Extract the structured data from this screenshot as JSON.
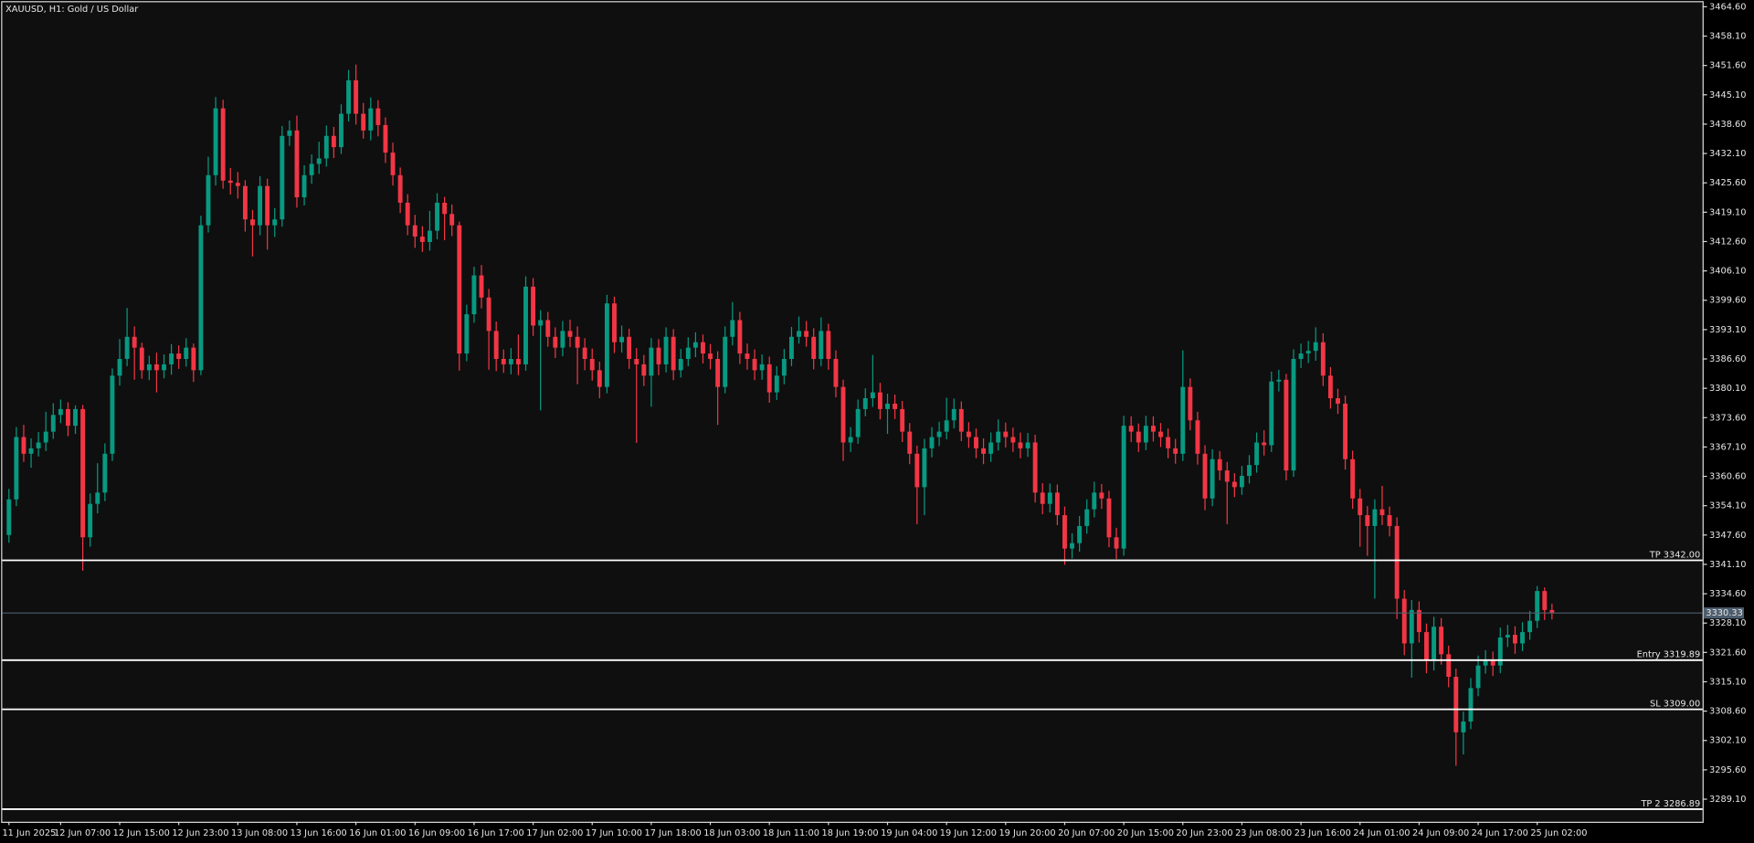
{
  "chart_data": {
    "type": "candlestick",
    "title": "XAUUSD, H1:  Gold / US Dollar",
    "up_color": "#089981",
    "down_color": "#f23645",
    "ylim": [
      3284.1,
      3465.6
    ],
    "yticks": [
      {
        "value": 3464.6,
        "label": "3464.60"
      },
      {
        "value": 3458.1,
        "label": "3458.10"
      },
      {
        "value": 3451.6,
        "label": "3451.60"
      },
      {
        "value": 3445.1,
        "label": "3445.10"
      },
      {
        "value": 3438.6,
        "label": "3438.60"
      },
      {
        "value": 3432.1,
        "label": "3432.10"
      },
      {
        "value": 3425.6,
        "label": "3425.60"
      },
      {
        "value": 3419.1,
        "label": "3419.10"
      },
      {
        "value": 3412.6,
        "label": "3412.60"
      },
      {
        "value": 3406.1,
        "label": "3406.10"
      },
      {
        "value": 3399.6,
        "label": "3399.60"
      },
      {
        "value": 3393.1,
        "label": "3393.10"
      },
      {
        "value": 3386.6,
        "label": "3386.60"
      },
      {
        "value": 3380.1,
        "label": "3380.10"
      },
      {
        "value": 3373.6,
        "label": "3373.60"
      },
      {
        "value": 3367.1,
        "label": "3367.10"
      },
      {
        "value": 3360.6,
        "label": "3360.60"
      },
      {
        "value": 3354.1,
        "label": "3354.10"
      },
      {
        "value": 3347.6,
        "label": "3347.60"
      },
      {
        "value": 3341.1,
        "label": "3341.10"
      },
      {
        "value": 3334.6,
        "label": "3334.60"
      },
      {
        "value": 3328.1,
        "label": "3328.10"
      },
      {
        "value": 3321.6,
        "label": "3321.60"
      },
      {
        "value": 3315.1,
        "label": "3315.10"
      },
      {
        "value": 3308.6,
        "label": "3308.60"
      },
      {
        "value": 3302.1,
        "label": "3302.10"
      },
      {
        "value": 3295.6,
        "label": "3295.60"
      },
      {
        "value": 3289.1,
        "label": "3289.10"
      }
    ],
    "categories": [
      "11 Jun 2025",
      null,
      null,
      null,
      null,
      null,
      null,
      "12 Jun 07:00",
      null,
      null,
      null,
      null,
      null,
      null,
      null,
      "12 Jun 15:00",
      null,
      null,
      null,
      null,
      null,
      null,
      null,
      "12 Jun 23:00",
      null,
      null,
      null,
      null,
      null,
      null,
      null,
      "13 Jun 08:00",
      null,
      null,
      null,
      null,
      null,
      null,
      null,
      "13 Jun 16:00",
      null,
      null,
      null,
      null,
      null,
      null,
      null,
      "16 Jun 01:00",
      null,
      null,
      null,
      null,
      null,
      null,
      null,
      "16 Jun 09:00",
      null,
      null,
      null,
      null,
      null,
      null,
      null,
      "16 Jun 17:00",
      null,
      null,
      null,
      null,
      null,
      null,
      null,
      "17 Jun 02:00",
      null,
      null,
      null,
      null,
      null,
      null,
      null,
      "17 Jun 10:00",
      null,
      null,
      null,
      null,
      null,
      null,
      null,
      "17 Jun 18:00",
      null,
      null,
      null,
      null,
      null,
      null,
      null,
      "18 Jun 03:00",
      null,
      null,
      null,
      null,
      null,
      null,
      null,
      "18 Jun 11:00",
      null,
      null,
      null,
      null,
      null,
      null,
      null,
      "18 Jun 19:00",
      null,
      null,
      null,
      null,
      null,
      null,
      null,
      "19 Jun 04:00",
      null,
      null,
      null,
      null,
      null,
      null,
      null,
      "19 Jun 12:00",
      null,
      null,
      null,
      null,
      null,
      null,
      null,
      "19 Jun 20:00",
      null,
      null,
      null,
      null,
      null,
      null,
      null,
      "20 Jun 07:00",
      null,
      null,
      null,
      null,
      null,
      null,
      null,
      "20 Jun 15:00",
      null,
      null,
      null,
      null,
      null,
      null,
      null,
      "20 Jun 23:00",
      null,
      null,
      null,
      null,
      null,
      null,
      null,
      "23 Jun 08:00",
      null,
      null,
      null,
      null,
      null,
      null,
      null,
      "23 Jun 16:00",
      null,
      null,
      null,
      null,
      null,
      null,
      null,
      "24 Jun 01:00",
      null,
      null,
      null,
      null,
      null,
      null,
      null,
      "24 Jun 09:00",
      null,
      null,
      null,
      null,
      null,
      null,
      null,
      "24 Jun 17:00",
      null,
      null,
      null,
      null,
      null,
      null,
      null,
      "25 Jun 02:00",
      null,
      null
    ],
    "open": [
      3347.6,
      3355.5,
      3369.3,
      3365.6,
      3366.8,
      3368.1,
      3370.5,
      3374.2,
      3375.5,
      3371.8,
      3375.5,
      3347.1,
      3354.5,
      3357.0,
      3365.6,
      3382.9,
      3386.6,
      3391.5,
      3389.1,
      3384.1,
      3385.4,
      3384.1,
      3385.4,
      3387.8,
      3386.6,
      3389.1,
      3384.1,
      3416.2,
      3427.3,
      3442.1,
      3426.1,
      3425.6,
      3424.9,
      3417.5,
      3416.2,
      3424.9,
      3416.2,
      3417.5,
      3436.0,
      3437.2,
      3422.4,
      3427.3,
      3429.8,
      3431.0,
      3436.0,
      3433.5,
      3440.9,
      3448.3,
      3440.9,
      3437.2,
      3442.1,
      3438.4,
      3432.3,
      3427.3,
      3421.2,
      3416.2,
      3413.7,
      3412.5,
      3415.0,
      3421.2,
      3418.7,
      3416.2,
      3387.8,
      3396.5,
      3405.1,
      3400.2,
      3392.8,
      3386.6,
      3385.4,
      3386.6,
      3385.4,
      3402.6,
      3394.0,
      3395.2,
      3391.5,
      3389.1,
      3392.8,
      3391.5,
      3389.1,
      3386.6,
      3384.1,
      3380.4,
      3398.9,
      3390.3,
      3391.5,
      3386.6,
      3385.4,
      3382.9,
      3389.1,
      3385.4,
      3391.5,
      3384.1,
      3386.6,
      3389.1,
      3390.3,
      3387.8,
      3386.6,
      3380.4,
      3391.5,
      3395.2,
      3387.8,
      3386.6,
      3384.1,
      3385.4,
      3379.2,
      3382.9,
      3386.6,
      3391.5,
      3392.8,
      3391.5,
      3386.6,
      3392.8,
      3386.6,
      3380.4,
      3368.1,
      3369.3,
      3375.5,
      3377.9,
      3379.2,
      3375.5,
      3376.7,
      3375.5,
      3370.5,
      3365.6,
      3358.2,
      3366.8,
      3369.3,
      3370.5,
      3373.0,
      3375.5,
      3370.5,
      3369.3,
      3366.8,
      3365.6,
      3368.1,
      3370.5,
      3369.3,
      3368.1,
      3366.8,
      3368.1,
      3357.0,
      3354.5,
      3357.0,
      3352.0,
      3344.6,
      3345.8,
      3349.6,
      3353.3,
      3357.0,
      3355.7,
      3347.1,
      3344.6,
      3371.8,
      3370.5,
      3368.1,
      3371.8,
      3370.5,
      3369.3,
      3366.8,
      3365.6,
      3380.4,
      3373.0,
      3365.6,
      3355.7,
      3364.4,
      3361.9,
      3359.4,
      3358.2,
      3360.7,
      3363.1,
      3368.1,
      3367.5,
      3381.6,
      3382.0,
      3361.9,
      3386.6,
      3387.8,
      3388.4,
      3390.3,
      3382.9,
      3377.9,
      3376.7,
      3364.4,
      3355.7,
      3352.0,
      3349.6,
      3353.3,
      3352.0,
      3349.6,
      3333.5,
      3323.6,
      3331.0,
      3326.1,
      3319.9,
      3327.3,
      3321.2,
      3316.2,
      3303.9,
      3306.3,
      3313.7,
      3318.7,
      3319.9,
      3318.7,
      3324.9,
      3325.5,
      3323.6,
      3326.1,
      3328.6,
      3335.2,
      3331.0
    ],
    "high": [
      3357.8,
      3371.5,
      3372.0,
      3369.0,
      3370.4,
      3374.9,
      3376.8,
      3377.6,
      3377.0,
      3376.3,
      3376.4,
      3356.8,
      3363.5,
      3367.9,
      3384.5,
      3391.0,
      3397.9,
      3393.8,
      3390.2,
      3387.3,
      3388.0,
      3387.6,
      3389.9,
      3389.6,
      3391.2,
      3390.0,
      3418.3,
      3431.4,
      3444.6,
      3444.0,
      3428.9,
      3428.0,
      3426.2,
      3419.6,
      3427.1,
      3426.5,
      3420.0,
      3438.2,
      3439.4,
      3440.5,
      3429.5,
      3431.9,
      3434.7,
      3438.3,
      3438.0,
      3443.0,
      3450.6,
      3451.8,
      3443.3,
      3444.5,
      3443.9,
      3440.1,
      3434.5,
      3429.0,
      3423.1,
      3418.5,
      3416.0,
      3419.4,
      3423.3,
      3422.5,
      3420.8,
      3417.0,
      3398.6,
      3407.0,
      3407.4,
      3402.1,
      3394.9,
      3388.7,
      3389.0,
      3392.0,
      3404.9,
      3404.5,
      3397.4,
      3397.0,
      3393.6,
      3395.0,
      3395.3,
      3393.8,
      3391.2,
      3388.9,
      3386.0,
      3400.8,
      3400.4,
      3394.0,
      3393.3,
      3389.0,
      3387.5,
      3391.2,
      3391.0,
      3393.6,
      3393.2,
      3388.8,
      3391.4,
      3392.5,
      3392.0,
      3389.9,
      3388.3,
      3393.8,
      3399.2,
      3397.0,
      3390.0,
      3388.7,
      3387.6,
      3387.1,
      3385.0,
      3388.8,
      3393.7,
      3396.0,
      3395.0,
      3393.4,
      3395.8,
      3394.4,
      3388.5,
      3382.0,
      3371.5,
      3377.6,
      3380.1,
      3387.5,
      3381.3,
      3378.9,
      3378.7,
      3377.3,
      3372.4,
      3367.4,
      3368.9,
      3371.5,
      3372.7,
      3378.0,
      3377.8,
      3377.2,
      3372.6,
      3371.2,
      3369.0,
      3370.3,
      3373.2,
      3372.5,
      3371.4,
      3370.3,
      3370.2,
      3369.8,
      3359.1,
      3359.0,
      3358.8,
      3353.9,
      3348.0,
      3351.8,
      3355.5,
      3359.4,
      3358.9,
      3357.4,
      3349.2,
      3374.0,
      3373.9,
      3372.3,
      3374.0,
      3373.9,
      3372.4,
      3371.2,
      3368.9,
      3388.5,
      3382.3,
      3374.9,
      3367.5,
      3366.6,
      3366.2,
      3363.8,
      3361.3,
      3362.9,
      3365.3,
      3370.3,
      3370.8,
      3383.8,
      3384.2,
      3383.3,
      3388.7,
      3390.0,
      3390.6,
      3393.6,
      3392.3,
      3384.8,
      3380.0,
      3378.5,
      3366.3,
      3357.8,
      3354.0,
      3355.5,
      3358.5,
      3353.9,
      3351.5,
      3335.4,
      3333.2,
      3332.9,
      3328.0,
      3329.5,
      3329.2,
      3323.1,
      3318.0,
      3308.5,
      3315.9,
      3320.9,
      3322.1,
      3321.8,
      3327.1,
      3327.7,
      3327.4,
      3328.3,
      3330.8,
      3336.3,
      3336.0,
      3332.4
    ],
    "low": [
      3345.9,
      3354.0,
      3363.8,
      3362.5,
      3365.0,
      3366.2,
      3368.9,
      3372.4,
      3369.5,
      3370.0,
      3339.7,
      3345.0,
      3352.4,
      3355.1,
      3364.0,
      3380.7,
      3385.0,
      3382.0,
      3382.2,
      3381.9,
      3379.2,
      3382.3,
      3383.1,
      3384.4,
      3384.9,
      3381.5,
      3383.0,
      3414.6,
      3425.0,
      3424.3,
      3423.0,
      3422.1,
      3414.8,
      3409.3,
      3414.0,
      3410.8,
      3413.6,
      3415.9,
      3433.8,
      3420.1,
      3420.6,
      3425.4,
      3427.6,
      3429.2,
      3431.1,
      3432.0,
      3439.2,
      3438.5,
      3435.4,
      3435.0,
      3435.9,
      3430.0,
      3425.0,
      3418.9,
      3414.0,
      3411.2,
      3410.3,
      3410.6,
      3413.1,
      3412.9,
      3413.8,
      3384.0,
      3386.1,
      3394.6,
      3397.8,
      3384.2,
      3383.9,
      3383.5,
      3383.2,
      3383.0,
      3384.0,
      3391.7,
      3375.2,
      3389.3,
      3386.8,
      3387.2,
      3389.2,
      3381.0,
      3384.1,
      3381.8,
      3377.9,
      3379.0,
      3387.9,
      3388.0,
      3384.4,
      3368.0,
      3380.6,
      3376.0,
      3383.0,
      3383.6,
      3381.9,
      3382.5,
      3385.0,
      3387.0,
      3385.6,
      3384.3,
      3372.0,
      3379.0,
      3389.6,
      3385.5,
      3384.2,
      3381.9,
      3382.0,
      3376.9,
      3377.5,
      3381.0,
      3385.0,
      3390.0,
      3389.3,
      3384.3,
      3385.0,
      3384.2,
      3378.1,
      3364.0,
      3366.0,
      3367.8,
      3373.9,
      3376.0,
      3373.2,
      3370.0,
      3373.3,
      3368.2,
      3363.3,
      3350.0,
      3352.0,
      3364.8,
      3367.3,
      3368.8,
      3371.2,
      3368.4,
      3366.9,
      3364.6,
      3363.3,
      3363.8,
      3366.3,
      3367.0,
      3366.0,
      3364.6,
      3364.9,
      3354.8,
      3352.2,
      3352.6,
      3349.8,
      3341.0,
      3342.4,
      3343.9,
      3347.9,
      3351.5,
      3353.4,
      3344.9,
      3342.3,
      3343.0,
      3368.2,
      3366.0,
      3366.4,
      3368.3,
      3367.1,
      3364.6,
      3363.4,
      3364.0,
      3370.8,
      3363.2,
      3353.1,
      3354.0,
      3359.7,
      3350.0,
      3356.0,
      3356.5,
      3359.0,
      3361.4,
      3365.2,
      3366.0,
      3379.4,
      3359.7,
      3360.5,
      3384.6,
      3385.7,
      3386.2,
      3380.6,
      3375.6,
      3374.4,
      3362.1,
      3353.4,
      3345.0,
      3343.0,
      3333.5,
      3349.8,
      3347.3,
      3329.0,
      3321.0,
      3316.0,
      3323.8,
      3317.0,
      3317.6,
      3318.9,
      3313.9,
      3296.5,
      3299.0,
      3304.6,
      3311.9,
      3316.9,
      3316.4,
      3317.0,
      3322.8,
      3321.3,
      3321.9,
      3324.4,
      3327.0,
      3328.8,
      3328.9
    ],
    "close": [
      3355.5,
      3369.3,
      3365.6,
      3366.8,
      3368.1,
      3370.5,
      3374.2,
      3375.5,
      3371.8,
      3375.5,
      3347.1,
      3354.5,
      3357.0,
      3365.6,
      3382.9,
      3386.6,
      3391.5,
      3389.1,
      3384.1,
      3385.4,
      3384.1,
      3385.4,
      3387.8,
      3386.6,
      3389.1,
      3384.1,
      3416.2,
      3427.3,
      3442.1,
      3426.1,
      3425.6,
      3424.9,
      3417.5,
      3416.2,
      3424.9,
      3416.2,
      3417.5,
      3436.0,
      3437.2,
      3422.4,
      3427.3,
      3429.8,
      3431.0,
      3436.0,
      3433.5,
      3440.9,
      3448.3,
      3440.9,
      3437.2,
      3442.1,
      3438.4,
      3432.3,
      3427.3,
      3421.2,
      3416.2,
      3413.7,
      3412.5,
      3415.0,
      3421.2,
      3418.7,
      3416.2,
      3387.8,
      3396.5,
      3405.1,
      3400.2,
      3392.8,
      3386.6,
      3385.4,
      3386.6,
      3385.4,
      3402.6,
      3394.0,
      3395.2,
      3391.5,
      3389.1,
      3392.8,
      3391.5,
      3389.1,
      3386.6,
      3384.1,
      3380.4,
      3398.9,
      3390.3,
      3391.5,
      3386.6,
      3385.4,
      3382.9,
      3389.1,
      3385.4,
      3391.5,
      3384.1,
      3386.6,
      3389.1,
      3390.3,
      3387.8,
      3386.6,
      3380.4,
      3391.5,
      3395.2,
      3387.8,
      3386.6,
      3384.1,
      3385.4,
      3379.2,
      3382.9,
      3386.6,
      3391.5,
      3392.8,
      3391.5,
      3386.6,
      3392.8,
      3386.6,
      3380.4,
      3368.1,
      3369.3,
      3375.5,
      3377.9,
      3379.2,
      3375.5,
      3376.7,
      3375.5,
      3370.5,
      3365.6,
      3358.2,
      3366.8,
      3369.3,
      3370.5,
      3373.0,
      3375.5,
      3370.5,
      3369.3,
      3366.8,
      3365.6,
      3368.1,
      3370.5,
      3369.3,
      3368.1,
      3366.8,
      3368.1,
      3357.0,
      3354.5,
      3357.0,
      3352.0,
      3344.6,
      3345.8,
      3349.6,
      3353.3,
      3357.0,
      3355.7,
      3347.1,
      3344.6,
      3371.8,
      3370.5,
      3368.1,
      3371.8,
      3370.5,
      3369.3,
      3366.8,
      3365.6,
      3380.4,
      3373.0,
      3365.6,
      3355.7,
      3364.4,
      3361.9,
      3359.4,
      3358.2,
      3360.7,
      3363.1,
      3368.1,
      3367.5,
      3381.6,
      3382.0,
      3361.9,
      3386.6,
      3387.8,
      3388.4,
      3390.3,
      3382.9,
      3377.9,
      3376.7,
      3364.4,
      3355.7,
      3352.0,
      3349.6,
      3353.3,
      3352.0,
      3349.6,
      3333.5,
      3323.6,
      3331.0,
      3326.1,
      3319.9,
      3327.3,
      3321.2,
      3316.2,
      3303.9,
      3306.3,
      3313.7,
      3318.7,
      3319.9,
      3318.7,
      3324.9,
      3325.5,
      3323.6,
      3326.1,
      3328.6,
      3335.2,
      3331.0,
      3330.3
    ],
    "current_price": {
      "value": 3330.33,
      "label": "3330.33",
      "color": "#4d5d6e"
    },
    "levels": [
      {
        "label": "TP 3342.00",
        "value": 3342.0,
        "color": "#ffffff"
      },
      {
        "label": "Entry 3319.89",
        "value": 3319.89,
        "color": "#ffffff"
      },
      {
        "label": "SL 3309.00",
        "value": 3309.0,
        "color": "#ffffff"
      },
      {
        "label": "TP 2 3286.89",
        "value": 3286.89,
        "color": "#ffffff"
      }
    ]
  }
}
